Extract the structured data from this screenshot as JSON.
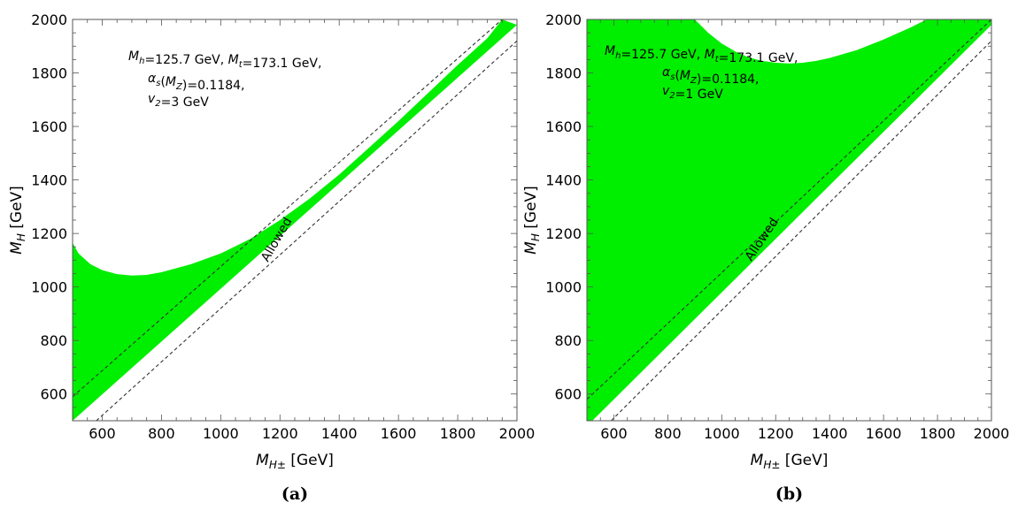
{
  "chart_data": [
    {
      "type": "area",
      "panel_label": "(a)",
      "xlabel": {
        "symbol": "M",
        "sub": "H±",
        "unit": "[GeV]"
      },
      "ylabel": {
        "symbol": "M",
        "sub": "H",
        "unit": "[GeV]"
      },
      "xlim": [
        500,
        2000
      ],
      "ylim": [
        500,
        2000
      ],
      "x_ticks": [
        600,
        800,
        1000,
        1200,
        1400,
        1600,
        1800,
        2000
      ],
      "y_ticks": [
        600,
        800,
        1000,
        1200,
        1400,
        1600,
        1800,
        2000
      ],
      "annotations": [
        {
          "text": "Mh=125.7 GeV, Mt=173.1 GeV,",
          "parts": [
            [
              "M",
              "h"
            ],
            [
              "=125.7 GeV, ",
              ""
            ],
            [
              "M",
              "t"
            ],
            [
              "=173.1 GeV,",
              ""
            ]
          ]
        },
        {
          "text": "αs(MZ)=0.1184,",
          "parts": [
            [
              "α",
              "s"
            ],
            [
              "(",
              ""
            ],
            [
              "M",
              "Z"
            ],
            [
              ")=0.1184,",
              ""
            ]
          ]
        },
        {
          "text": "v2=3 GeV",
          "parts": [
            [
              "v",
              "2"
            ],
            [
              "=3 GeV",
              ""
            ]
          ]
        }
      ],
      "region_label": "Allowed",
      "region_color": "#00ee00",
      "allowed_region": {
        "upper_boundary": [
          [
            500,
            1165
          ],
          [
            520,
            1125
          ],
          [
            560,
            1085
          ],
          [
            600,
            1063
          ],
          [
            650,
            1048
          ],
          [
            700,
            1043
          ],
          [
            750,
            1045
          ],
          [
            800,
            1055
          ],
          [
            900,
            1085
          ],
          [
            1000,
            1125
          ],
          [
            1100,
            1180
          ],
          [
            1200,
            1250
          ],
          [
            1300,
            1330
          ],
          [
            1400,
            1420
          ],
          [
            1500,
            1520
          ],
          [
            1600,
            1620
          ],
          [
            1700,
            1725
          ],
          [
            1800,
            1830
          ],
          [
            1900,
            1930
          ],
          [
            1950,
            2000
          ]
        ],
        "lower_boundary": [
          [
            500,
            500
          ],
          [
            2000,
            1980
          ]
        ]
      },
      "dashed_lines": [
        {
          "x": [
            500,
            1950
          ],
          "y": [
            590,
            2000
          ]
        },
        {
          "x": [
            580,
            2000
          ],
          "y": [
            500,
            1920
          ]
        }
      ]
    },
    {
      "type": "area",
      "panel_label": "(b)",
      "xlabel": {
        "symbol": "M",
        "sub": "H±",
        "unit": "[GeV]"
      },
      "ylabel": {
        "symbol": "M",
        "sub": "H",
        "unit": "[GeV]"
      },
      "xlim": [
        500,
        2000
      ],
      "ylim": [
        500,
        2000
      ],
      "x_ticks": [
        600,
        800,
        1000,
        1200,
        1400,
        1600,
        1800,
        2000
      ],
      "y_ticks": [
        600,
        800,
        1000,
        1200,
        1400,
        1600,
        1800,
        2000
      ],
      "annotations": [
        {
          "text": "Mh=125.7 GeV, Mt=173.1 GeV,",
          "parts": [
            [
              "M",
              "h"
            ],
            [
              "=125.7 GeV, ",
              ""
            ],
            [
              "M",
              "t"
            ],
            [
              "=173.1 GeV,",
              ""
            ]
          ]
        },
        {
          "text": "αs(MZ)=0.1184,",
          "parts": [
            [
              "α",
              "s"
            ],
            [
              "(",
              ""
            ],
            [
              "M",
              "Z"
            ],
            [
              ")=0.1184,",
              ""
            ]
          ]
        },
        {
          "text": "v2=1 GeV",
          "parts": [
            [
              "v",
              "2"
            ],
            [
              "=1 GeV",
              ""
            ]
          ]
        }
      ],
      "region_label": "Allowed",
      "region_color": "#00ee00",
      "allowed_region": {
        "upper_boundary": [
          [
            500,
            2000
          ],
          [
            900,
            2000
          ],
          [
            950,
            1950
          ],
          [
            1000,
            1910
          ],
          [
            1050,
            1880
          ],
          [
            1100,
            1858
          ],
          [
            1150,
            1845
          ],
          [
            1200,
            1838
          ],
          [
            1250,
            1835
          ],
          [
            1300,
            1838
          ],
          [
            1350,
            1845
          ],
          [
            1400,
            1856
          ],
          [
            1500,
            1885
          ],
          [
            1600,
            1925
          ],
          [
            1700,
            1970
          ],
          [
            1760,
            2000
          ],
          [
            2000,
            2000
          ]
        ],
        "lower_boundary": [
          [
            500,
            500
          ],
          [
            520,
            500
          ],
          [
            2000,
            1980
          ]
        ]
      },
      "dashed_lines": [
        {
          "x": [
            500,
            2000
          ],
          "y": [
            580,
            2000
          ]
        },
        {
          "x": [
            590,
            2000
          ],
          "y": [
            500,
            1920
          ]
        }
      ]
    }
  ]
}
